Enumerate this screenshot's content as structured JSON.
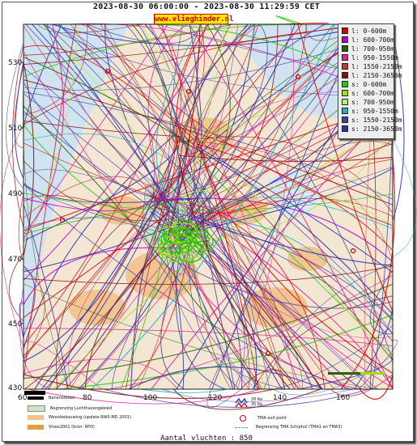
{
  "header": {
    "date_range": "2023-08-30 06:00:00 - 2023-08-30 11:29:59 CET",
    "site": "www.vlieghinder.nl"
  },
  "axes": {
    "y_ticks": [
      "530",
      "510",
      "490",
      "470",
      "450",
      "430"
    ],
    "x_ticks": [
      "60",
      "80",
      "100",
      "120",
      "140",
      "160"
    ],
    "y_range": [
      430,
      540
    ],
    "x_range": [
      60,
      175
    ]
  },
  "legend": [
    {
      "label": "l: 0-600m",
      "color": "#d40000"
    },
    {
      "label": "l: 600-700m",
      "color": "#b000d0"
    },
    {
      "label": "l: 700-950m",
      "color": "#2a6000"
    },
    {
      "label": "l: 950-1550m",
      "color": "#e0209a"
    },
    {
      "label": "l: 1550-2150m",
      "color": "#d03040"
    },
    {
      "label": "l: 2150-3650m",
      "color": "#8a1010"
    },
    {
      "label": "s: 0-600m",
      "color": "#22cc00"
    },
    {
      "label": "s: 600-700m",
      "color": "#a0e000"
    },
    {
      "label": "s: 700-950m",
      "color": "#b8f060"
    },
    {
      "label": "s: 950-1550m",
      "color": "#20b0c0"
    },
    {
      "label": "s: 1550-2150m",
      "color": "#4040a0"
    },
    {
      "label": "s: 2150-3650m",
      "color": "#3030a8"
    }
  ],
  "bottom_legend": {
    "runway": "Banenstelsel",
    "airport_boundary": "Begrenzing Luchthavengebied",
    "housing": "Woonbebouwing (update RWS-MD 2001)",
    "vinex": "Vinex2001 (bron: RPD)",
    "noise_ke20": "20 Ke",
    "noise_ke35": "35 Ke",
    "tma_exit": "TMA exit point",
    "tma_boundary": "Begrenzing TMA Schiphol  (TMA1 en TMA3)"
  },
  "footer": {
    "flight_count": "Aantal vluchten : 850"
  }
}
